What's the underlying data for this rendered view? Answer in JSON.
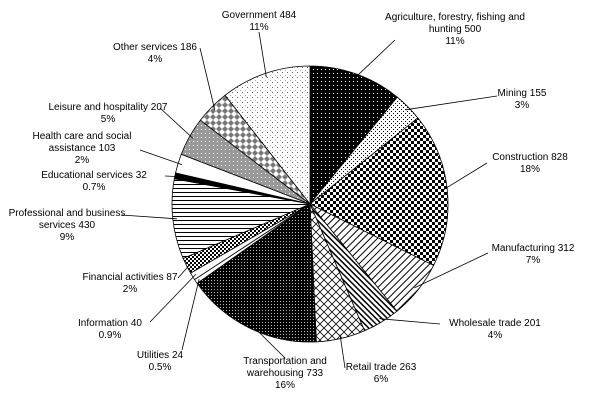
{
  "chart_data": {
    "type": "pie",
    "categories": [
      "Agriculture, forestry, fishing and hunting",
      "Mining",
      "Construction",
      "Manufacturing",
      "Wholesale trade",
      "Retail trade",
      "Transportation and warehousing",
      "Utilities",
      "Information",
      "Financial activities",
      "Professional and business services",
      "Educational services",
      "Health care and social assistance",
      "Leisure and hospitality",
      "Other services",
      "Government"
    ],
    "values": [
      500,
      155,
      828,
      312,
      201,
      263,
      733,
      24,
      40,
      87,
      430,
      32,
      103,
      207,
      186,
      484
    ],
    "share_labels": [
      "11%",
      "3%",
      "18%",
      "7%",
      "4%",
      "6%",
      "16%",
      "0.5%",
      "0.9%",
      "2%",
      "9%",
      "0.7%",
      "2%",
      "5%",
      "4%",
      "11%"
    ]
  }
}
